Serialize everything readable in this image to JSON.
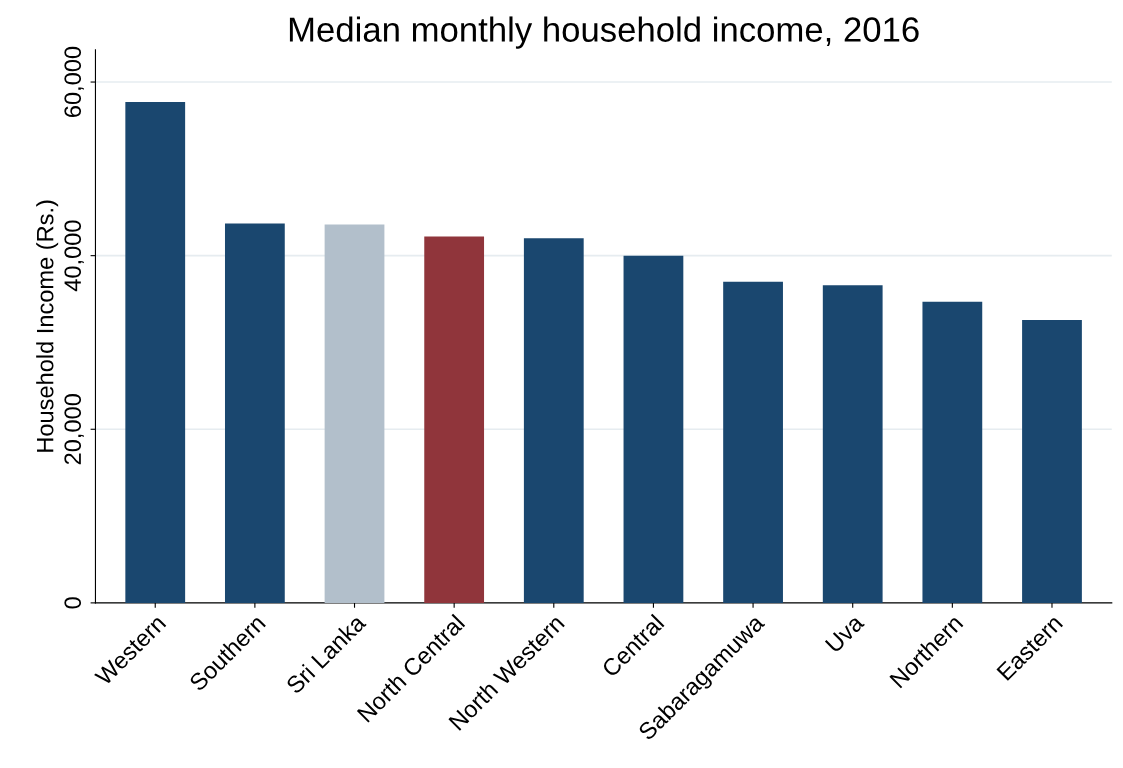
{
  "chart_data": {
    "type": "bar",
    "title": "Median monthly household income, 2016",
    "ylabel": "Household Income (Rs.)",
    "categories": [
      "Western",
      "Southern",
      "Sri Lanka",
      "North Central",
      "North Western",
      "Central",
      "Sabaragamuwa",
      "Uva",
      "Northern",
      "Eastern"
    ],
    "values": [
      57700,
      43700,
      43600,
      42200,
      42000,
      40000,
      37000,
      36600,
      34700,
      32600
    ],
    "colors": [
      "#1a476f",
      "#1a476f",
      "#b2bfcb",
      "#90353b",
      "#1a476f",
      "#1a476f",
      "#1a476f",
      "#1a476f",
      "#1a476f",
      "#1a476f"
    ],
    "ylim": [
      0,
      63700
    ],
    "yticks": [
      0,
      {
        "value": 20000,
        "label": "20,000"
      },
      {
        "value": 40000,
        "label": "40,000"
      },
      {
        "value": 60000,
        "label": "60,000"
      }
    ],
    "grid": "y"
  }
}
